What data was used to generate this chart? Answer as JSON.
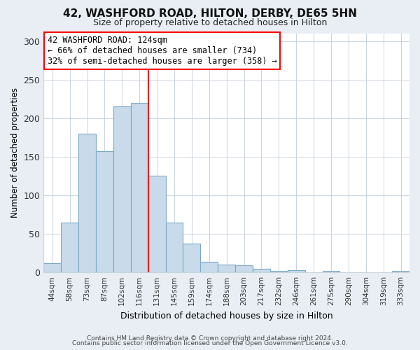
{
  "title": "42, WASHFORD ROAD, HILTON, DERBY, DE65 5HN",
  "subtitle": "Size of property relative to detached houses in Hilton",
  "xlabel": "Distribution of detached houses by size in Hilton",
  "ylabel": "Number of detached properties",
  "bin_labels": [
    "44sqm",
    "58sqm",
    "73sqm",
    "87sqm",
    "102sqm",
    "116sqm",
    "131sqm",
    "145sqm",
    "159sqm",
    "174sqm",
    "188sqm",
    "203sqm",
    "217sqm",
    "232sqm",
    "246sqm",
    "261sqm",
    "275sqm",
    "290sqm",
    "304sqm",
    "319sqm",
    "333sqm"
  ],
  "bar_values": [
    12,
    65,
    180,
    157,
    215,
    220,
    125,
    65,
    37,
    14,
    10,
    9,
    5,
    2,
    3,
    0,
    2,
    0,
    0,
    0,
    2
  ],
  "bar_color": "#c9daea",
  "bar_edge_color": "#7aaac8",
  "vline_x": 6.0,
  "vline_color": "red",
  "ylim": [
    0,
    310
  ],
  "yticks": [
    0,
    50,
    100,
    150,
    200,
    250,
    300
  ],
  "annotation_title": "42 WASHFORD ROAD: 124sqm",
  "annotation_line1": "← 66% of detached houses are smaller (734)",
  "annotation_line2": "32% of semi-detached houses are larger (358) →",
  "annotation_box_color": "#ffffff",
  "annotation_border_color": "red",
  "footer_line1": "Contains HM Land Registry data © Crown copyright and database right 2024.",
  "footer_line2": "Contains public sector information licensed under the Open Government Licence v3.0.",
  "background_color": "#e8eef4",
  "plot_background_color": "#ffffff",
  "grid_color": "#c8d4de"
}
